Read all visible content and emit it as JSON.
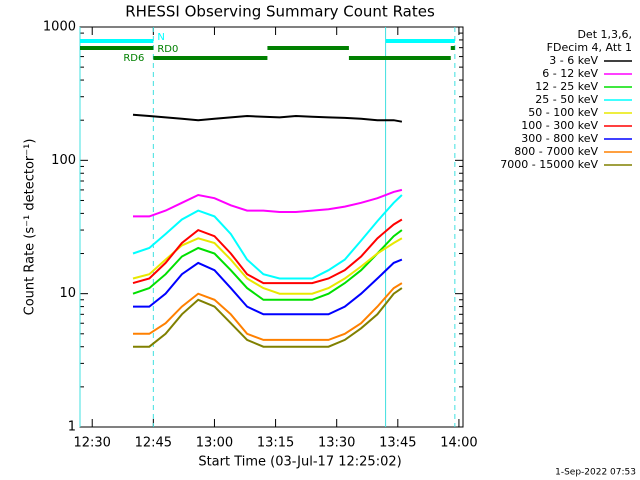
{
  "chart_data": {
    "type": "line",
    "title": "RHESSI Observing Summary Count Rates",
    "x_label": "Start Time (03-Jul-17 12:25:02)",
    "y_label": "Count Rate (s⁻¹ detector⁻¹)",
    "log_y": true,
    "ylim": [
      1,
      1000
    ],
    "yticks": [
      1,
      10,
      100,
      1000
    ],
    "xlim": [
      "12:27",
      "14:01"
    ],
    "xticks": [
      "12:30",
      "12:45",
      "13:00",
      "13:15",
      "13:30",
      "13:45",
      "14:00"
    ],
    "legend_header": [
      "Det 1,3,6,",
      "FDecim 4, Att 1"
    ],
    "footer": "1-Sep-2022 07:53",
    "x": [
      "12:40",
      "12:44",
      "12:48",
      "12:52",
      "12:56",
      "13:00",
      "13:04",
      "13:08",
      "13:12",
      "13:16",
      "13:20",
      "13:24",
      "13:28",
      "13:32",
      "13:36",
      "13:40",
      "13:44",
      "13:46"
    ],
    "series": [
      {
        "name": "3 - 6 keV",
        "color": "#000000",
        "values": [
          220,
          215,
          210,
          205,
          200,
          205,
          210,
          215,
          212,
          210,
          215,
          212,
          210,
          208,
          205,
          200,
          200,
          195
        ]
      },
      {
        "name": "6 - 12 keV",
        "color": "#ff00ff",
        "values": [
          38,
          38,
          42,
          48,
          55,
          52,
          46,
          42,
          42,
          41,
          41,
          42,
          43,
          45,
          48,
          52,
          58,
          60
        ]
      },
      {
        "name": "12 - 25 keV",
        "color": "#00e000",
        "values": [
          10,
          11,
          14,
          19,
          22,
          20,
          15,
          11,
          9,
          9,
          9,
          9,
          10,
          12,
          15,
          20,
          27,
          30
        ]
      },
      {
        "name": "25 - 50 keV",
        "color": "#00ffff",
        "values": [
          20,
          22,
          28,
          36,
          42,
          38,
          28,
          18,
          14,
          13,
          13,
          13,
          15,
          18,
          25,
          35,
          48,
          55
        ]
      },
      {
        "name": "50 - 100 keV",
        "color": "#e8e800",
        "values": [
          13,
          14,
          18,
          23,
          26,
          24,
          18,
          13,
          11,
          10,
          10,
          10,
          11,
          13,
          16,
          20,
          24,
          26
        ]
      },
      {
        "name": "100 - 300 keV",
        "color": "#ff0000",
        "values": [
          12,
          13,
          17,
          24,
          30,
          27,
          20,
          14,
          12,
          12,
          12,
          12,
          13,
          15,
          19,
          26,
          33,
          36
        ]
      },
      {
        "name": "300 - 800 keV",
        "color": "#0000ff",
        "values": [
          8,
          8,
          10,
          14,
          17,
          15,
          11,
          8,
          7,
          7,
          7,
          7,
          7,
          8,
          10,
          13,
          17,
          18
        ]
      },
      {
        "name": "800 - 7000 keV",
        "color": "#ff8000",
        "values": [
          5,
          5,
          6,
          8,
          10,
          9,
          7,
          5,
          4.5,
          4.5,
          4.5,
          4.5,
          4.5,
          5,
          6,
          8,
          11,
          12
        ]
      },
      {
        "name": "7000 - 15000 keV",
        "color": "#808000",
        "values": [
          4,
          4,
          5,
          7,
          9,
          8,
          6,
          4.5,
          4,
          4,
          4,
          4,
          4,
          4.5,
          5.5,
          7,
          10,
          11
        ]
      }
    ],
    "markers": [
      {
        "x": "12:27",
        "style": "solid"
      },
      {
        "x": "12:45",
        "style": "dashed"
      },
      {
        "x": "13:42",
        "style": "solid"
      },
      {
        "x": "13:59",
        "style": "dashed"
      }
    ],
    "marker_color": "#40e0e0",
    "flags": [
      {
        "label": "N",
        "color": "#00ffff",
        "segments": [
          [
            "12:27",
            "12:45"
          ],
          [
            "13:42",
            "13:59"
          ]
        ]
      },
      {
        "label": "RD0",
        "color": "#008000",
        "segments": [
          [
            "12:27",
            "12:45"
          ],
          [
            "13:13",
            "13:33"
          ],
          [
            "13:58",
            "13:59"
          ]
        ]
      },
      {
        "label": "RD6",
        "color": "#008000",
        "segments": [
          [
            "12:45",
            "13:13"
          ],
          [
            "13:33",
            "13:58"
          ]
        ]
      }
    ]
  }
}
